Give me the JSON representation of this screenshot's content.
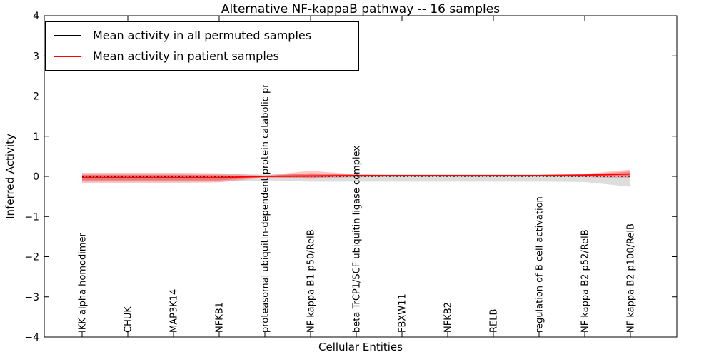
{
  "title": "Alternative NF-kappaB pathway -- 16 samples",
  "legend": {
    "items": [
      {
        "label": "Mean activity in all permuted samples",
        "color": "#000000"
      },
      {
        "label": "Mean activity in patient samples",
        "color": "#ff0000"
      }
    ]
  },
  "axes": {
    "ylabel": "Inferred Activity",
    "xlabel": "Cellular Entities",
    "yticks": [
      {
        "label": "4",
        "value": 4
      },
      {
        "label": "3",
        "value": 3
      },
      {
        "label": "2",
        "value": 2
      },
      {
        "label": "1",
        "value": 1
      },
      {
        "label": "0",
        "value": 0
      },
      {
        "label": "−1",
        "value": -1
      },
      {
        "label": "−2",
        "value": -2
      },
      {
        "label": "−3",
        "value": -3
      },
      {
        "label": "−4",
        "value": -4
      }
    ]
  },
  "chart_data": {
    "type": "line",
    "title": "Alternative NF-kappaB pathway -- 16 samples",
    "xlabel": "Cellular Entities",
    "ylabel": "Inferred Activity",
    "ylim": [
      -4,
      4
    ],
    "grid": false,
    "legend_position": "upper left",
    "categories": [
      "IKK alpha homodimer",
      "CHUK",
      "MAP3K14",
      "NFKB1",
      "proteasomal ubiquitin-dependent protein catabolic pr",
      "NF kappa B1 p50/RelB",
      "beta TrCP1/SCF ubiquitin ligase complex",
      "FBXW11",
      "NFKB2",
      "RELB",
      "regulation of B cell activation",
      "NF kappa B2 p52/RelB",
      "NF kappa B2 p100/RelB"
    ],
    "series": [
      {
        "name": "Mean activity in all permuted samples",
        "color": "#000000",
        "style": "dotted",
        "values": [
          0,
          0,
          0,
          0,
          0,
          0,
          0,
          0,
          0,
          0,
          0,
          0,
          0
        ]
      },
      {
        "name": "Mean activity in patient samples",
        "color": "#ff0000",
        "style": "solid",
        "values": [
          -0.03,
          -0.03,
          -0.03,
          -0.03,
          0.0,
          0.01,
          0.02,
          0.02,
          0.02,
          0.02,
          0.02,
          0.03,
          0.06
        ]
      }
    ],
    "bands": [
      {
        "name": "permuted-std-band",
        "color": "#aaaaaa",
        "opacity": 0.4,
        "upper": [
          0.05,
          0.05,
          0.05,
          0.05,
          0.05,
          0.05,
          0.05,
          0.05,
          0.05,
          0.05,
          0.05,
          0.06,
          0.08
        ],
        "lower": [
          -0.13,
          -0.13,
          -0.13,
          -0.13,
          -0.1,
          -0.13,
          -0.13,
          -0.13,
          -0.13,
          -0.13,
          -0.13,
          -0.14,
          -0.26
        ]
      },
      {
        "name": "patient-std-band",
        "color": "#ff0000",
        "opacity": 0.22,
        "upper": [
          0.09,
          0.09,
          0.09,
          0.08,
          0.02,
          0.14,
          0.05,
          0.03,
          0.03,
          0.03,
          0.03,
          0.06,
          0.17
        ],
        "lower": [
          -0.16,
          -0.16,
          -0.16,
          -0.15,
          -0.03,
          -0.06,
          -0.02,
          -0.01,
          -0.01,
          -0.01,
          -0.01,
          -0.02,
          -0.05
        ]
      },
      {
        "name": "patient-inner-band",
        "color": "#ff0000",
        "opacity": 0.3,
        "upper": [
          0.04,
          0.04,
          0.04,
          0.03,
          0.01,
          0.08,
          0.04,
          0.03,
          0.03,
          0.03,
          0.03,
          0.05,
          0.12
        ],
        "lower": [
          -0.1,
          -0.1,
          -0.1,
          -0.1,
          -0.02,
          -0.03,
          0.0,
          0.0,
          0.0,
          0.0,
          0.0,
          0.0,
          0.0
        ]
      }
    ]
  }
}
